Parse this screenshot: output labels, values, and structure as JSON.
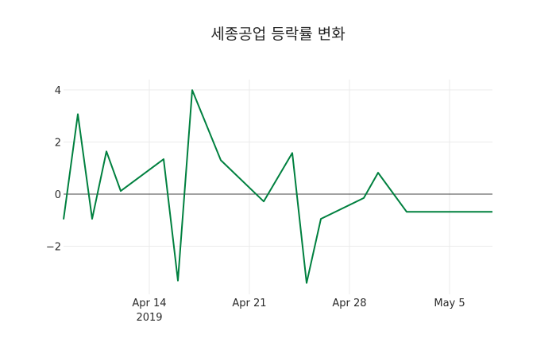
{
  "chart_data": {
    "type": "line",
    "title": "세종공업 등락률 변화",
    "xlabel": "",
    "ylabel": "",
    "x": [
      "2019-04-08",
      "2019-04-09",
      "2019-04-10",
      "2019-04-11",
      "2019-04-12",
      "2019-04-15",
      "2019-04-16",
      "2019-04-17",
      "2019-04-19",
      "2019-04-22",
      "2019-04-24",
      "2019-04-25",
      "2019-04-26",
      "2019-04-29",
      "2019-04-30",
      "2019-05-02",
      "2019-05-08"
    ],
    "series": [
      {
        "name": "등락률",
        "color": "#00803f",
        "values": [
          -0.97,
          3.07,
          -0.95,
          1.64,
          0.12,
          1.34,
          -3.32,
          3.99,
          1.3,
          -0.28,
          1.58,
          -3.41,
          -0.95,
          -0.15,
          0.82,
          -0.68,
          -0.68
        ]
      }
    ],
    "x_tick_labels": [
      "Apr 14",
      "Apr 21",
      "Apr 28",
      "May 5"
    ],
    "x_tick_sublabel": "2019",
    "y_tick_labels": [
      "−2",
      "0",
      "2",
      "4"
    ],
    "y_ticks": [
      -2,
      0,
      2,
      4
    ],
    "ylim": [
      -3.6,
      4.4
    ],
    "xlim": [
      "2019-04-08",
      "2019-05-08"
    ],
    "grid": true,
    "zero_line": true,
    "legend": "none"
  }
}
